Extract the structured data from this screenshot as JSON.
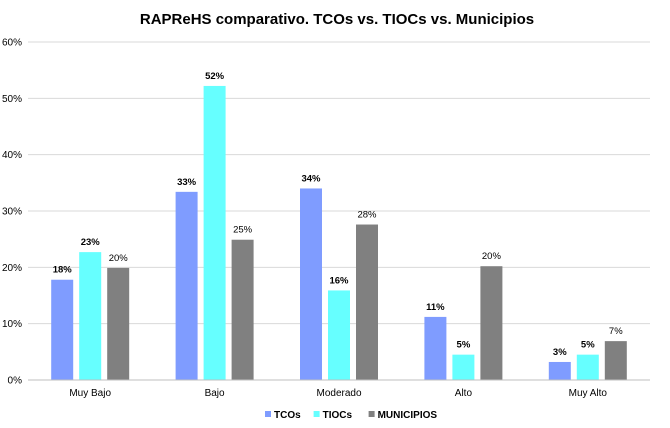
{
  "chart_data": {
    "type": "bar",
    "title": "RAPReHS comparativo. TCOs vs. TIOCs vs. Municipios",
    "categories": [
      "Muy Bajo",
      "Bajo",
      "Moderado",
      "Alto",
      "Muy Alto"
    ],
    "series": [
      {
        "name": "TCOs",
        "color": "#7F9CFF",
        "values": [
          17.8,
          33.4,
          34.0,
          11.2,
          3.2
        ],
        "labels": [
          "18%",
          "33%",
          "34%",
          "11%",
          "3%"
        ],
        "label_bold": true
      },
      {
        "name": "TIOCs",
        "color": "#66FFFF",
        "values": [
          22.7,
          52.2,
          15.9,
          4.5,
          4.5
        ],
        "labels": [
          "23%",
          "52%",
          "16%",
          "5%",
          "5%"
        ],
        "label_bold": true
      },
      {
        "name": "MUNICIPIOS",
        "color": "#808080",
        "values": [
          19.9,
          24.9,
          27.6,
          20.2,
          6.9
        ],
        "labels": [
          "20%",
          "25%",
          "28%",
          "20%",
          "7%"
        ],
        "label_bold": false
      }
    ],
    "ylim": [
      0,
      60
    ],
    "yticks": [
      "0%",
      "10%",
      "20%",
      "30%",
      "40%",
      "50%",
      "60%"
    ],
    "xlabel": "",
    "ylabel": "",
    "grid": true,
    "legend": "bottom"
  }
}
